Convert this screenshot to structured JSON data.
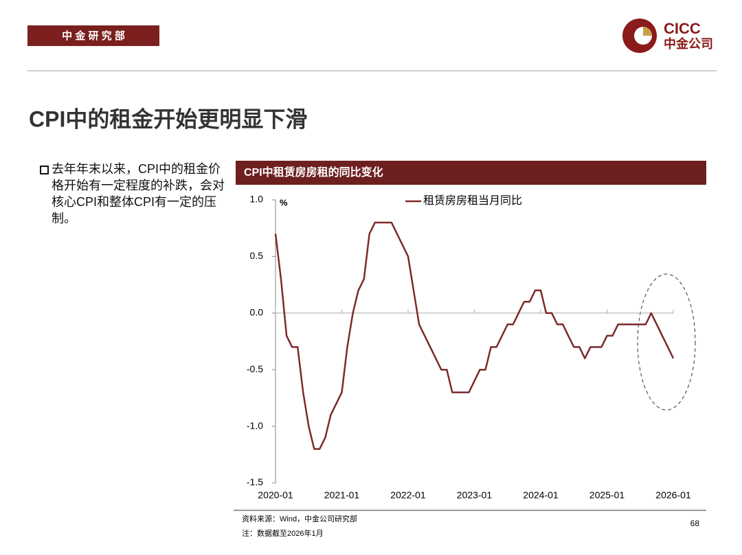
{
  "header": {
    "tag": "中 金 研 究 部",
    "logo_en": "CICC",
    "logo_cn": "中金公司"
  },
  "title": "CPI中的租金开始更明显下滑",
  "bullet": "去年年末以来，CPI中的租金价格开始有一定程度的补跌，会对核心CPI和整体CPI有一定的压制。",
  "footer": {
    "source": "资料来源：Wind，中金公司研究部",
    "note": "注：数据截至2026年1月",
    "page": 68
  },
  "chart_data": {
    "type": "line",
    "title": "CPI中租赁房房租的同比变化",
    "y_unit": "%",
    "x": [
      "2020-01",
      "2020-02",
      "2020-03",
      "2020-04",
      "2020-05",
      "2020-06",
      "2020-07",
      "2020-08",
      "2020-09",
      "2020-10",
      "2020-11",
      "2020-12",
      "2021-01",
      "2021-02",
      "2021-03",
      "2021-04",
      "2021-05",
      "2021-06",
      "2021-07",
      "2021-08",
      "2021-09",
      "2021-10",
      "2021-11",
      "2021-12",
      "2022-01",
      "2022-02",
      "2022-03",
      "2022-04",
      "2022-05",
      "2022-06",
      "2022-07",
      "2022-08",
      "2022-09",
      "2022-10",
      "2022-11",
      "2022-12",
      "2023-01",
      "2023-02",
      "2023-03",
      "2023-04",
      "2023-05",
      "2023-06",
      "2023-07",
      "2023-08",
      "2023-09",
      "2023-10",
      "2023-11",
      "2023-12",
      "2024-01",
      "2024-02",
      "2024-03",
      "2024-04",
      "2024-05",
      "2024-06",
      "2024-07",
      "2024-08",
      "2024-09",
      "2024-10",
      "2024-11",
      "2024-12",
      "2025-01",
      "2025-02",
      "2025-03",
      "2025-04",
      "2025-05",
      "2025-06",
      "2025-07",
      "2025-08",
      "2025-09",
      "2025-10",
      "2025-11",
      "2025-12",
      "2026-01"
    ],
    "series": [
      {
        "name": "租赁房房租当月同比",
        "color": "#7b2a2a",
        "values": [
          0.7,
          0.3,
          -0.2,
          -0.3,
          -0.3,
          -0.7,
          -1.0,
          -1.2,
          -1.2,
          -1.1,
          -0.9,
          -0.8,
          -0.7,
          -0.3,
          0.0,
          0.2,
          0.3,
          0.7,
          0.8,
          0.8,
          0.8,
          0.8,
          0.7,
          0.6,
          0.5,
          0.2,
          -0.1,
          -0.2,
          -0.3,
          -0.4,
          -0.5,
          -0.5,
          -0.7,
          -0.7,
          -0.7,
          -0.7,
          -0.6,
          -0.5,
          -0.5,
          -0.3,
          -0.3,
          -0.2,
          -0.1,
          -0.1,
          0.0,
          0.1,
          0.1,
          0.2,
          0.2,
          0.0,
          0.0,
          -0.1,
          -0.1,
          -0.2,
          -0.3,
          -0.3,
          -0.4,
          -0.3,
          -0.3,
          -0.3,
          -0.2,
          -0.2,
          -0.1,
          -0.1,
          -0.1,
          -0.1,
          -0.1,
          -0.1,
          0.0,
          -0.1,
          -0.2,
          -0.3,
          -0.4
        ]
      }
    ],
    "ylim": [
      -1.5,
      1.0
    ],
    "yticks": [
      -1.5,
      {
        "value": -1.0,
        "label": "-1.0"
      },
      -0.5,
      {
        "value": 0.0,
        "label": "0.0"
      },
      0.5,
      {
        "value": 1.0,
        "label": "1.0"
      }
    ]
  }
}
